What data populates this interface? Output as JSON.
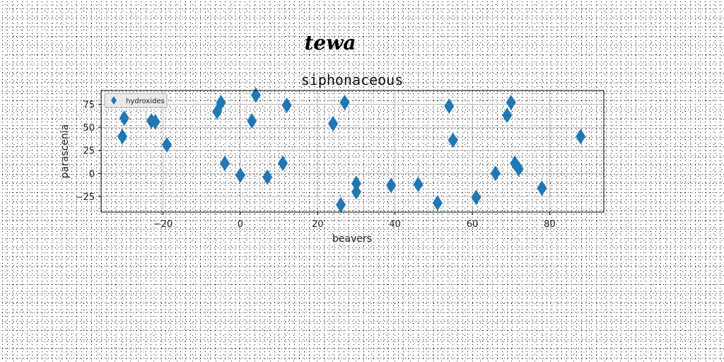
{
  "chart_data": {
    "type": "scatter",
    "suptitle": "tewa",
    "title": "siphonaceous",
    "xlabel": "beavers",
    "ylabel": "parascenia",
    "xlim": [
      -36,
      94
    ],
    "ylim": [
      -42,
      90
    ],
    "xticks": [
      -20,
      0,
      20,
      40,
      60,
      80
    ],
    "yticks": [
      -25,
      0,
      25,
      50,
      75
    ],
    "grid": true,
    "legend_position": "top-left",
    "marker": "thin-diamond",
    "series": [
      {
        "name": "hydroxides",
        "color": "#1f77b4",
        "points": [
          [
            -30,
            60
          ],
          [
            -30.5,
            40
          ],
          [
            -23,
            57
          ],
          [
            -22,
            56
          ],
          [
            -19,
            31
          ],
          [
            -6,
            67
          ],
          [
            -5,
            77
          ],
          [
            -4,
            11
          ],
          [
            0,
            -2
          ],
          [
            3,
            57
          ],
          [
            4,
            85
          ],
          [
            7,
            -4
          ],
          [
            11,
            11
          ],
          [
            12,
            74
          ],
          [
            24,
            54
          ],
          [
            26,
            -34
          ],
          [
            27,
            77
          ],
          [
            30,
            -11
          ],
          [
            30,
            -20
          ],
          [
            39,
            -13
          ],
          [
            46,
            -12
          ],
          [
            51,
            -32
          ],
          [
            54,
            73
          ],
          [
            55,
            36
          ],
          [
            61,
            -26
          ],
          [
            66,
            0
          ],
          [
            69,
            63
          ],
          [
            70,
            77
          ],
          [
            71,
            11
          ],
          [
            72,
            5
          ],
          [
            78,
            -16
          ],
          [
            88,
            40
          ]
        ]
      }
    ]
  }
}
